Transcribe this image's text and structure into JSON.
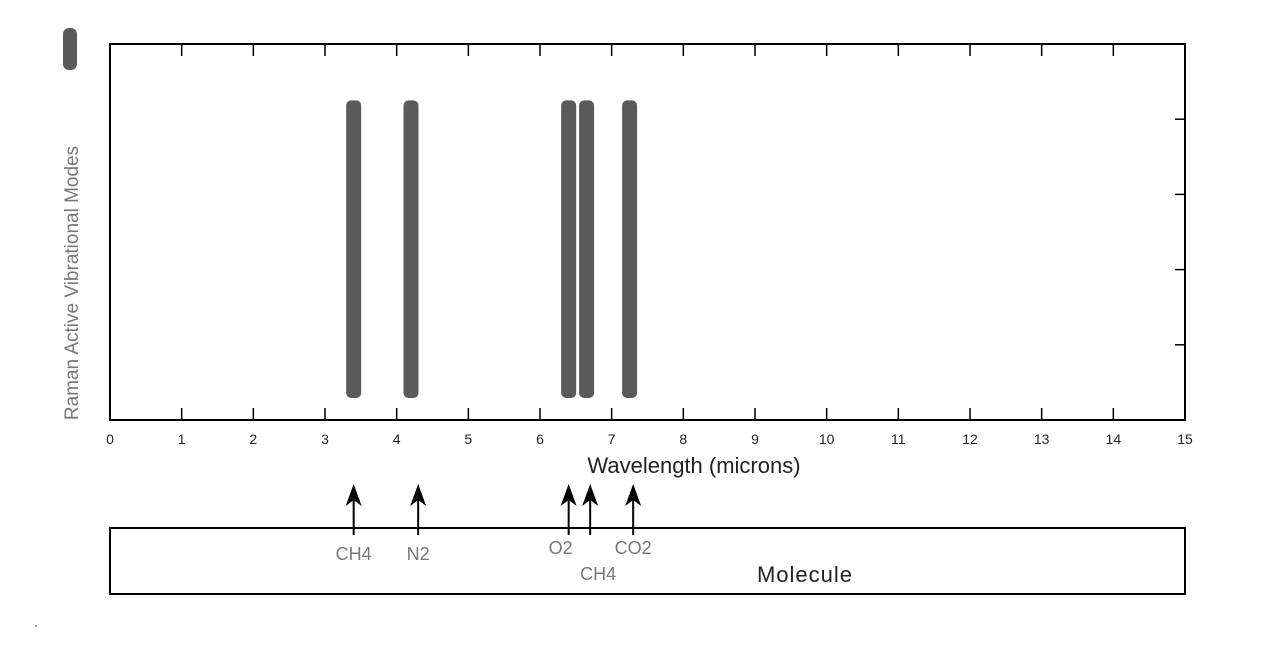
{
  "chart_data": {
    "type": "bar",
    "title": "",
    "xlabel": "Wavelength (microns)",
    "ylabel": "Raman Active Vibrational Modes",
    "xlim": [
      0,
      15
    ],
    "xticks": [
      0,
      1,
      2,
      3,
      4,
      5,
      6,
      7,
      8,
      9,
      10,
      11,
      12,
      13,
      14,
      15
    ],
    "ylim": [
      0,
      1
    ],
    "bars": [
      {
        "x": 3.4,
        "height": 0.85,
        "color": "#5a5a5a"
      },
      {
        "x": 4.2,
        "height": 0.85,
        "color": "#5a5a5a"
      },
      {
        "x": 6.4,
        "height": 0.85,
        "color": "#5a5a5a"
      },
      {
        "x": 6.65,
        "height": 0.85,
        "color": "#5a5a5a"
      },
      {
        "x": 7.25,
        "height": 0.85,
        "color": "#5a5a5a"
      }
    ],
    "molecule_markers": [
      {
        "x": 3.4,
        "label": "CH4"
      },
      {
        "x": 4.3,
        "label": "N2"
      },
      {
        "x": 6.4,
        "label": "O2"
      },
      {
        "x": 6.7,
        "label": "CH4"
      },
      {
        "x": 7.3,
        "label": "CO2"
      }
    ],
    "molecule_box_label": "Molecule",
    "grid": false,
    "legend": "none"
  }
}
